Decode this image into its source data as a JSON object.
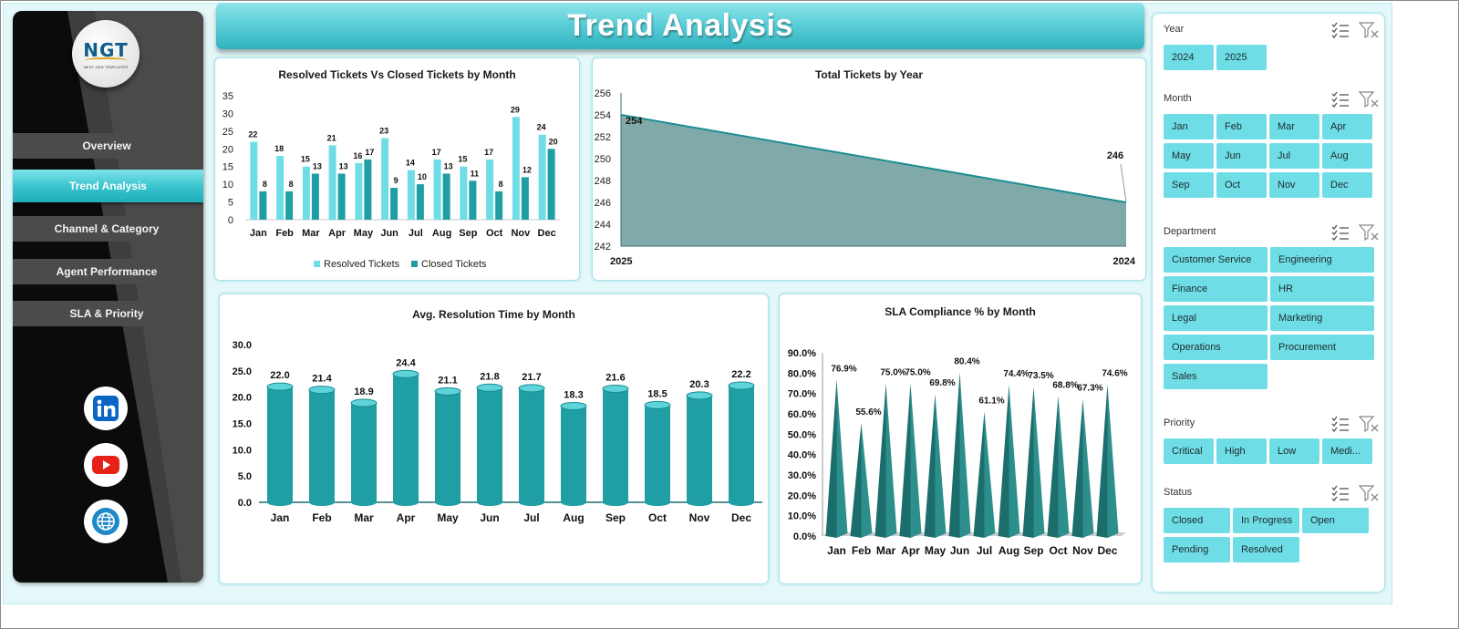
{
  "title": "Trend Analysis",
  "logo": {
    "mark": "NGT",
    "subtitle": "NEXT GEN TEMPLATES"
  },
  "nav": [
    {
      "id": "overview",
      "label": "Overview",
      "active": false
    },
    {
      "id": "trend",
      "label": "Trend Analysis",
      "active": true
    },
    {
      "id": "channel",
      "label": "Channel & Category",
      "active": false
    },
    {
      "id": "agent",
      "label": "Agent Performance",
      "active": false
    },
    {
      "id": "sla",
      "label": "SLA & Priority",
      "active": false
    }
  ],
  "social": [
    {
      "name": "linkedin-icon",
      "color": "#0a66c2"
    },
    {
      "name": "youtube-icon",
      "color": "#e62117"
    },
    {
      "name": "website-globe-icon",
      "color": "#1e88c9"
    }
  ],
  "colors": {
    "accent_light": "#6fdde6",
    "accent_dark": "#1f9ea4",
    "area": "#80aaa9",
    "sla": "#1b6e6c"
  },
  "chart_data": [
    {
      "id": "resolved_vs_closed",
      "type": "bar",
      "title": "Resolved Tickets Vs Closed Tickets by Month",
      "categories": [
        "Jan",
        "Feb",
        "Mar",
        "Apr",
        "May",
        "Jun",
        "Jul",
        "Aug",
        "Sep",
        "Oct",
        "Nov",
        "Dec"
      ],
      "ylim": [
        0,
        35
      ],
      "yticks": [
        0,
        5,
        10,
        15,
        20,
        25,
        30,
        35
      ],
      "legend": "bottom",
      "series": [
        {
          "name": "Resolved Tickets",
          "color": "#6fdde6",
          "values": [
            22,
            18,
            15,
            21,
            16,
            23,
            14,
            17,
            15,
            17,
            29,
            24
          ]
        },
        {
          "name": "Closed Tickets",
          "color": "#1f9ea4",
          "values": [
            8,
            8,
            13,
            13,
            17,
            9,
            10,
            13,
            11,
            8,
            12,
            20
          ]
        }
      ]
    },
    {
      "id": "total_by_year",
      "type": "area",
      "title": "Total Tickets by Year",
      "categories": [
        "2025",
        "2024"
      ],
      "values": [
        254,
        246
      ],
      "ylim": [
        242,
        256
      ],
      "yticks": [
        242,
        244,
        246,
        248,
        250,
        252,
        254,
        256
      ]
    },
    {
      "id": "avg_resolution",
      "type": "bar",
      "title": "Avg. Resolution Time by Month",
      "categories": [
        "Jan",
        "Feb",
        "Mar",
        "Apr",
        "May",
        "Jun",
        "Jul",
        "Aug",
        "Sep",
        "Oct",
        "Nov",
        "Dec"
      ],
      "values": [
        22.0,
        21.4,
        18.9,
        24.4,
        21.1,
        21.8,
        21.7,
        18.3,
        21.6,
        18.5,
        20.3,
        22.2
      ],
      "labels": [
        "22.0",
        "21.4",
        "18.9",
        "24.4",
        "21.1",
        "21.8",
        "21.7",
        "18.3",
        "21.6",
        "18.5",
        "20.3",
        "22.2"
      ],
      "ylim": [
        0,
        30
      ],
      "yticks": [
        "0.0",
        "5.0",
        "10.0",
        "15.0",
        "20.0",
        "25.0",
        "30.0"
      ]
    },
    {
      "id": "sla_compliance",
      "type": "bar",
      "title": "SLA Compliance % by Month",
      "categories": [
        "Jan",
        "Feb",
        "Mar",
        "Apr",
        "May",
        "Jun",
        "Jul",
        "Aug",
        "Sep",
        "Oct",
        "Nov",
        "Dec"
      ],
      "values": [
        76.9,
        55.6,
        75.0,
        75.0,
        69.8,
        80.4,
        61.1,
        74.4,
        73.5,
        68.8,
        67.3,
        74.6
      ],
      "labels": [
        "76.9%",
        "55.6%",
        "75.0%",
        "75.0%",
        "69.8%",
        "80.4%",
        "61.1%",
        "74.4%",
        "73.5%",
        "68.8%",
        "67.3%",
        "74.6%"
      ],
      "ylim": [
        0,
        90
      ],
      "yticks": [
        "0.0%",
        "10.0%",
        "20.0%",
        "30.0%",
        "40.0%",
        "50.0%",
        "60.0%",
        "70.0%",
        "80.0%",
        "90.0%"
      ]
    }
  ],
  "slicers": [
    {
      "id": "year",
      "label": "Year",
      "items": [
        "2024",
        "2025"
      ]
    },
    {
      "id": "month",
      "label": "Month",
      "items": [
        "Jan",
        "Feb",
        "Mar",
        "Apr",
        "May",
        "Jun",
        "Jul",
        "Aug",
        "Sep",
        "Oct",
        "Nov",
        "Dec"
      ]
    },
    {
      "id": "department",
      "label": "Department",
      "items": [
        "Customer Service",
        "Engineering",
        "Finance",
        "HR",
        "Legal",
        "Marketing",
        "Operations",
        "Procurement",
        "Sales"
      ]
    },
    {
      "id": "priority",
      "label": "Priority",
      "items": [
        "Critical",
        "High",
        "Low",
        "Medi..."
      ]
    },
    {
      "id": "status",
      "label": "Status",
      "items": [
        "Closed",
        "In Progress",
        "Open",
        "Pending",
        "Resolved"
      ]
    }
  ]
}
